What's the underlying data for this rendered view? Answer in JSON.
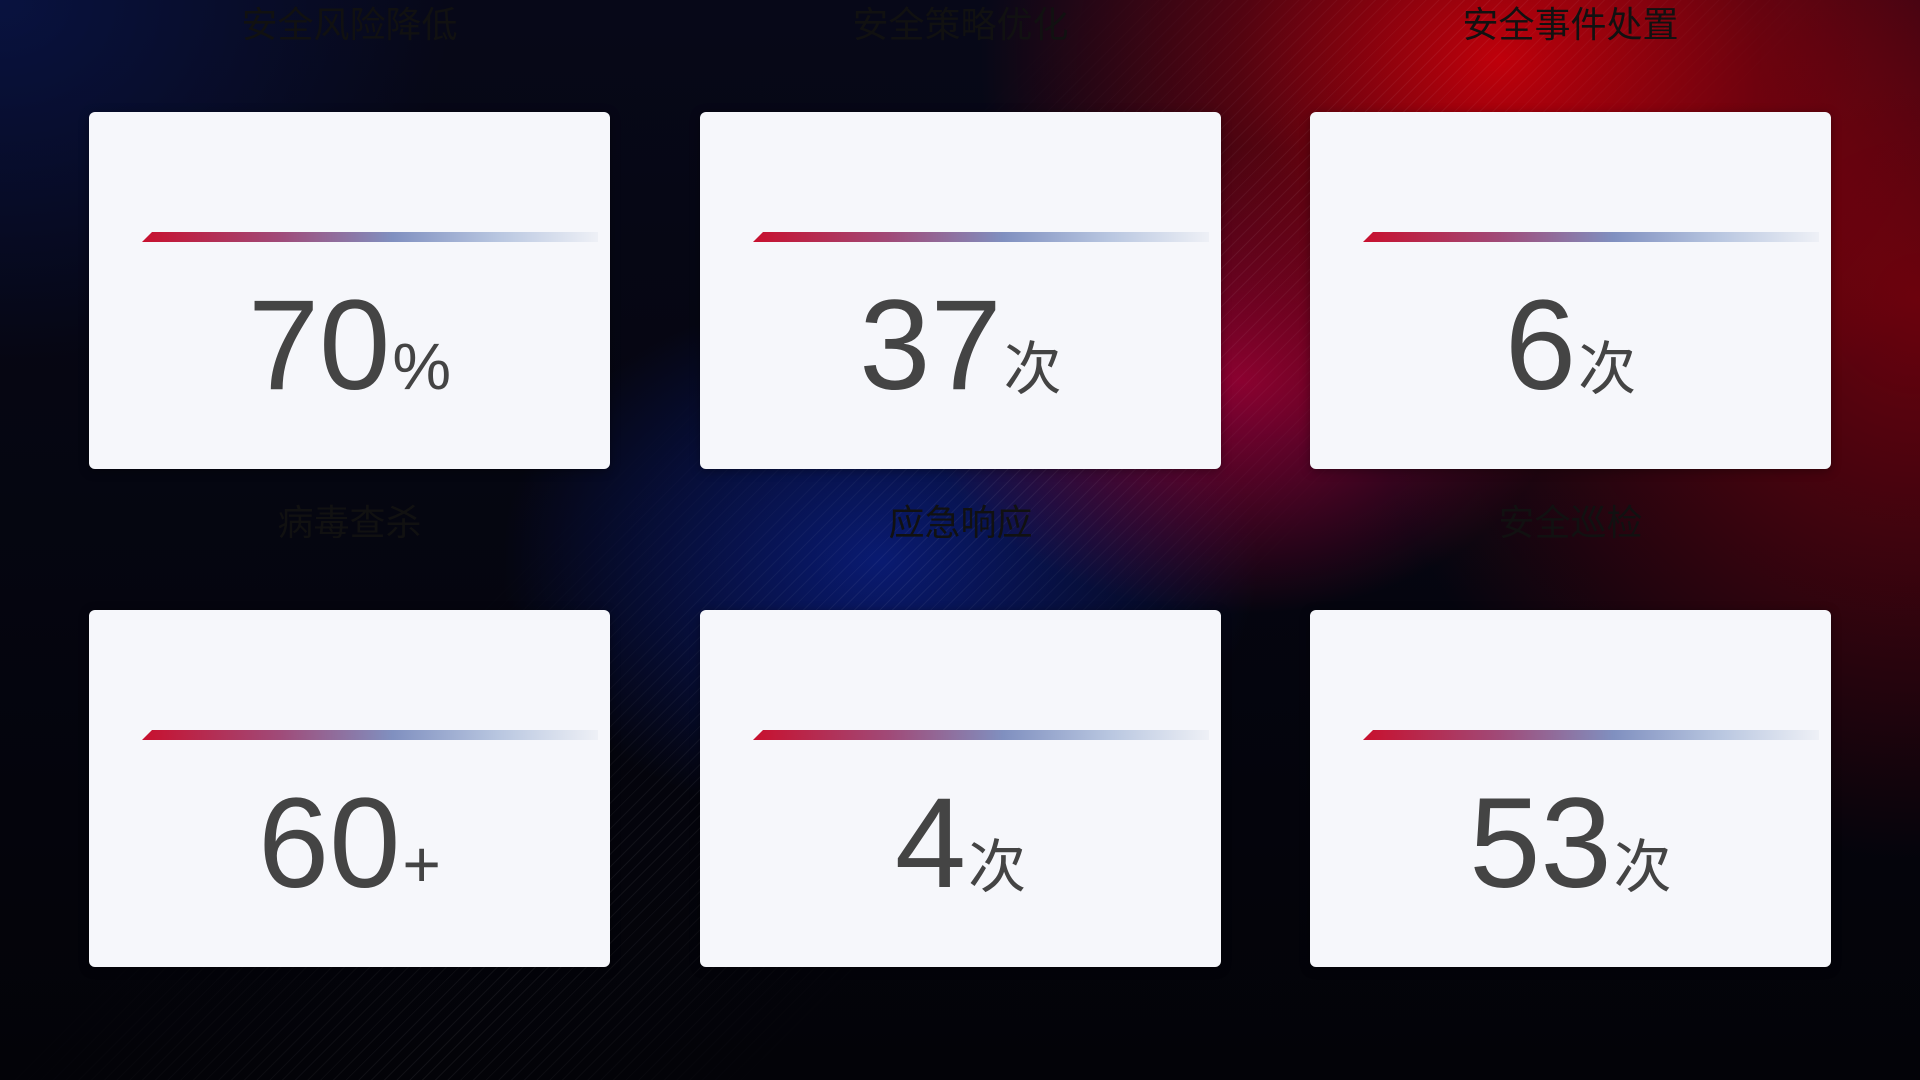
{
  "cards": [
    {
      "title": "安全风险降低",
      "value": "70",
      "unit": "%"
    },
    {
      "title": "安全策略优化",
      "value": "37",
      "unit": "次"
    },
    {
      "title": "安全事件处置",
      "value": "6",
      "unit": "次"
    },
    {
      "title": "病毒查杀",
      "value": "60",
      "unit": "+"
    },
    {
      "title": "应急响应",
      "value": "4",
      "unit": "次"
    },
    {
      "title": "安全巡检",
      "value": "53",
      "unit": "次"
    }
  ],
  "colors": {
    "accent_red": "#c8102e",
    "accent_blue": "#8090c0",
    "card_bg": "#f6f7fb",
    "value_text": "#444444"
  }
}
